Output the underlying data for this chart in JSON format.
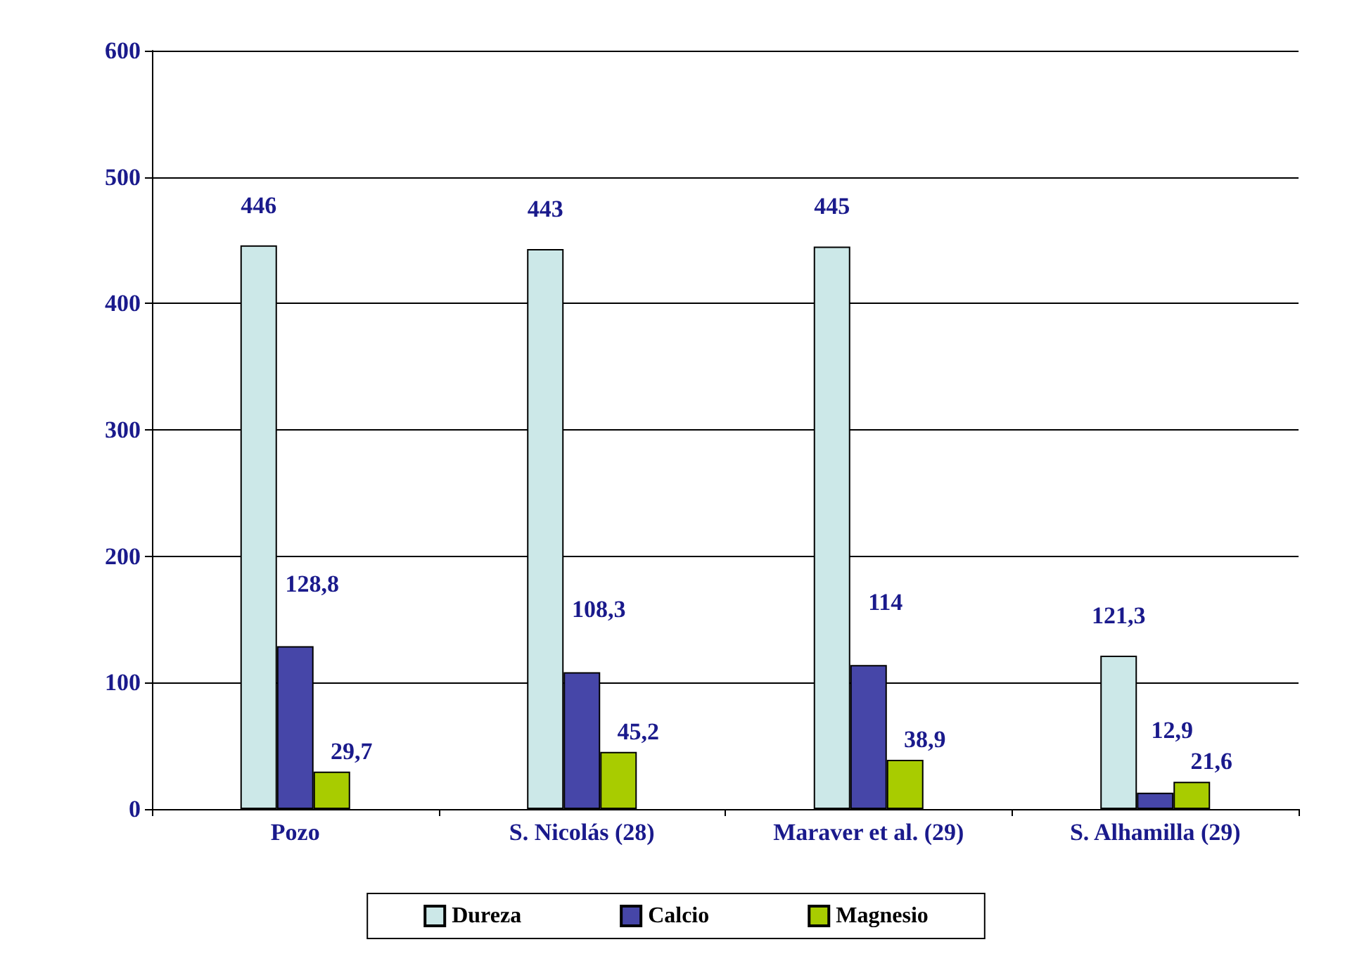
{
  "chart_data": {
    "type": "bar",
    "categories": [
      "Pozo",
      "S. Nicolás (28)",
      "Maraver et al. (29)",
      "S. Alhamilla (29)"
    ],
    "series": [
      {
        "name": "Dureza",
        "color": "#cce8e8",
        "values": [
          446,
          443,
          445,
          121.3
        ],
        "value_labels": [
          "446",
          "443",
          "445",
          "121,3"
        ]
      },
      {
        "name": "Calcio",
        "color": "#4646a8",
        "values": [
          128.8,
          108.3,
          114,
          12.9
        ],
        "value_labels": [
          "128,8",
          "108,3",
          "114",
          "12,9"
        ]
      },
      {
        "name": "Magnesio",
        "color": "#a8cc00",
        "values": [
          29.7,
          45.2,
          38.9,
          21.6
        ],
        "value_labels": [
          "29,7",
          "45,2",
          "38,9",
          "21,6"
        ]
      }
    ],
    "ylim": [
      0,
      600
    ],
    "yticks": [
      0,
      100,
      200,
      300,
      400,
      500,
      600
    ],
    "grid": "y",
    "legend": "bottom"
  }
}
